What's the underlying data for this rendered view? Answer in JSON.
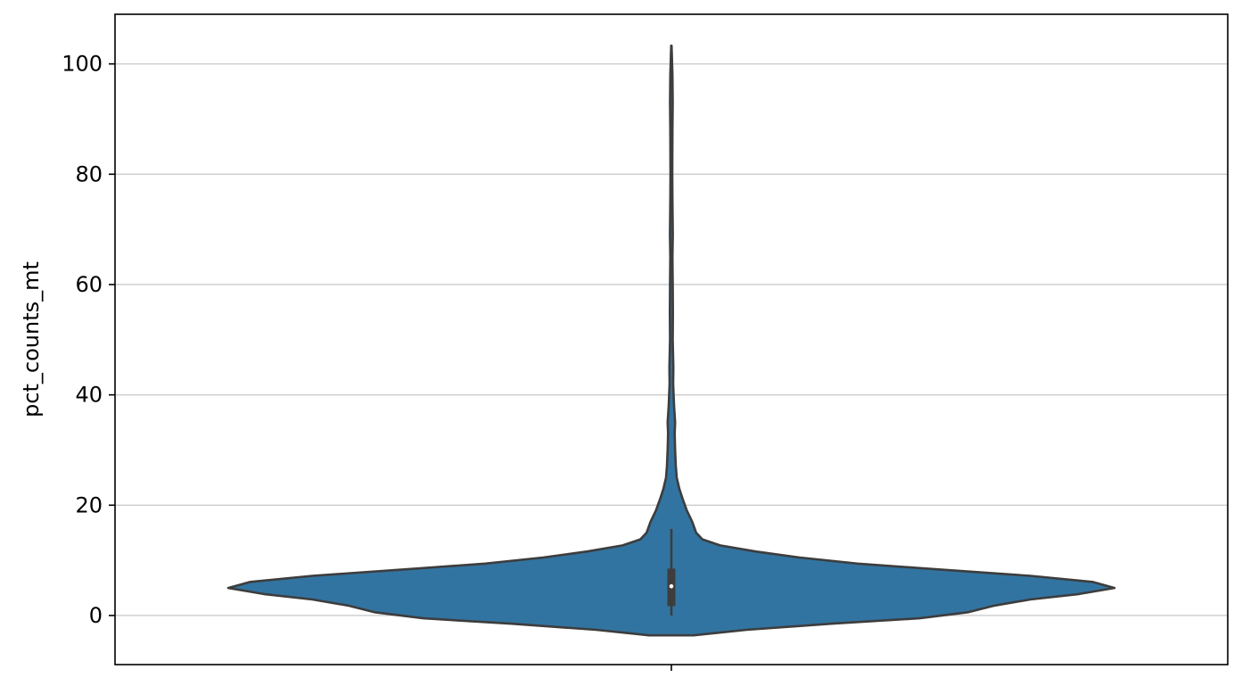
{
  "chart_data": {
    "type": "violin",
    "title": "",
    "xlabel": "",
    "ylabel": "pct_counts_mt",
    "ylim": [
      -8.9,
      109
    ],
    "yticks": [
      0,
      20,
      40,
      60,
      80,
      100
    ],
    "ytick_labels": [
      "0",
      "20",
      "40",
      "60",
      "80",
      "100"
    ],
    "grid": "horizontal",
    "legend": "none",
    "fill_color": "#3274a1",
    "line_color": "#3d3d3d",
    "grid_color": "#cccccc",
    "density_profile": [
      {
        "y": -3.6,
        "w": 0.05
      },
      {
        "y": -2.6,
        "w": 0.17
      },
      {
        "y": -1.5,
        "w": 0.36
      },
      {
        "y": -0.5,
        "w": 0.56
      },
      {
        "y": 0.6,
        "w": 0.67
      },
      {
        "y": 1.8,
        "w": 0.73
      },
      {
        "y": 2.9,
        "w": 0.81
      },
      {
        "y": 3.9,
        "w": 0.92
      },
      {
        "y": 5.0,
        "w": 1.0
      },
      {
        "y": 6.1,
        "w": 0.95
      },
      {
        "y": 7.2,
        "w": 0.81
      },
      {
        "y": 8.3,
        "w": 0.61
      },
      {
        "y": 9.4,
        "w": 0.42
      },
      {
        "y": 10.5,
        "w": 0.29
      },
      {
        "y": 11.6,
        "w": 0.19
      },
      {
        "y": 12.7,
        "w": 0.11
      },
      {
        "y": 13.8,
        "w": 0.07
      },
      {
        "y": 15.0,
        "w": 0.056
      },
      {
        "y": 17.0,
        "w": 0.047
      },
      {
        "y": 19.0,
        "w": 0.035
      },
      {
        "y": 21.0,
        "w": 0.026
      },
      {
        "y": 23.0,
        "w": 0.018
      },
      {
        "y": 25.0,
        "w": 0.012
      },
      {
        "y": 27.0,
        "w": 0.01
      },
      {
        "y": 30.0,
        "w": 0.0085
      },
      {
        "y": 33.0,
        "w": 0.0075
      },
      {
        "y": 35.0,
        "w": 0.0085
      },
      {
        "y": 38.0,
        "w": 0.006
      },
      {
        "y": 42.0,
        "w": 0.004
      },
      {
        "y": 45.0,
        "w": 0.0045
      },
      {
        "y": 50.0,
        "w": 0.003
      },
      {
        "y": 55.0,
        "w": 0.0035
      },
      {
        "y": 60.0,
        "w": 0.003
      },
      {
        "y": 65.0,
        "w": 0.0025
      },
      {
        "y": 69.0,
        "w": 0.0032
      },
      {
        "y": 75.0,
        "w": 0.0025
      },
      {
        "y": 80.0,
        "w": 0.002
      },
      {
        "y": 88.0,
        "w": 0.0025
      },
      {
        "y": 93.0,
        "w": 0.003
      },
      {
        "y": 98.0,
        "w": 0.0025
      },
      {
        "y": 103.3,
        "w": 0.0005
      }
    ],
    "box": {
      "q1": 1.7,
      "median": 5.3,
      "q3": 8.5,
      "whisker_low": 0.0,
      "whisker_high": 15.7
    }
  }
}
